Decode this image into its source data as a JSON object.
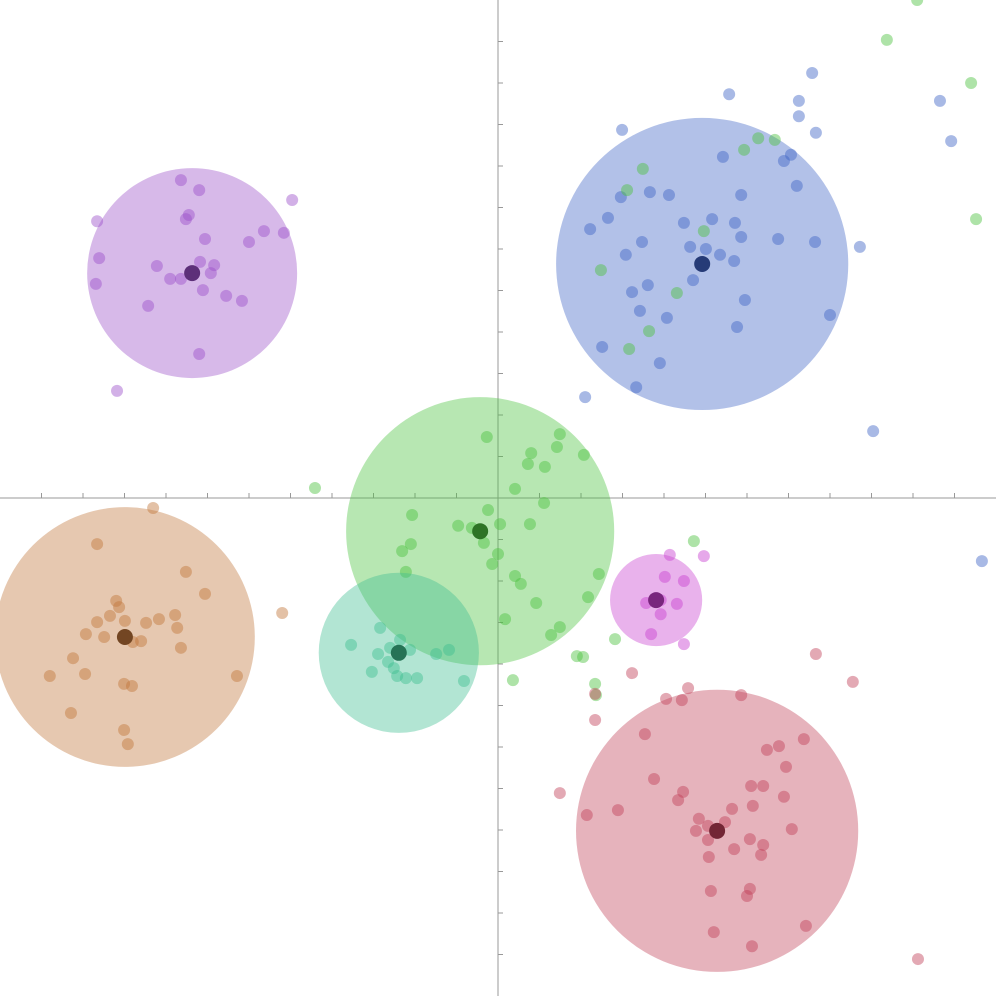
{
  "chart_data": {
    "type": "scatter",
    "xlim": [
      -12,
      12
    ],
    "ylim": [
      -12,
      12
    ],
    "xticks": [
      -11,
      -10,
      -9,
      -8,
      -7,
      -6,
      -5,
      -4,
      -3,
      -2,
      -1,
      1,
      2,
      3,
      4,
      5,
      6,
      7,
      8,
      9,
      10,
      11
    ],
    "yticks": [
      -11,
      -10,
      -9,
      -8,
      -7,
      -6,
      -5,
      -4,
      -3,
      -2,
      -1,
      1,
      2,
      3,
      4,
      5,
      6,
      7,
      8,
      9,
      10,
      11
    ],
    "series": [
      {
        "color": "#9b4fc9",
        "center": [
          -7.37,
          5.42
        ],
        "radius": 2.53,
        "x": [
          -7.64,
          -7.2,
          -7.45,
          -7.52,
          -7.06,
          -6.0,
          -5.64,
          -5.16,
          -4.96,
          -9.66,
          -9.61,
          -9.69,
          -8.22,
          -7.9,
          -7.64,
          -7.18,
          -6.84,
          -6.92,
          -7.11,
          -6.55,
          -6.17,
          -8.43,
          -7.2,
          -9.18
        ],
        "y": [
          7.66,
          7.42,
          6.82,
          6.72,
          6.24,
          6.17,
          6.43,
          6.39,
          7.18,
          6.67,
          5.78,
          5.16,
          5.59,
          5.28,
          5.28,
          5.69,
          5.61,
          5.42,
          5.01,
          4.87,
          4.75,
          4.63,
          3.47,
          2.58
        ]
      },
      {
        "color": "#3f63c6",
        "center": [
          4.92,
          5.64
        ],
        "radius": 3.52,
        "x": [
          7.57,
          5.57,
          7.25,
          7.25,
          7.66,
          10.65,
          10.92,
          2.99,
          5.42,
          7.06,
          6.89,
          7.2,
          5.86,
          3.66,
          4.12,
          2.96,
          2.65,
          2.22,
          4.48,
          5.16,
          5.71,
          5.86,
          3.47,
          3.08,
          6.75,
          7.64,
          8.72,
          4.63,
          5.01,
          5.35,
          5.69,
          4.7,
          3.23,
          3.61,
          5.95,
          8.0,
          3.42,
          4.07,
          5.76,
          2.51,
          3.9,
          3.33,
          2.1,
          9.04,
          11.66
        ],
        "y": [
          10.24,
          9.73,
          9.57,
          9.2,
          8.8,
          9.57,
          8.6,
          8.87,
          8.22,
          8.27,
          8.12,
          7.52,
          7.3,
          7.37,
          7.3,
          7.25,
          6.75,
          6.48,
          6.63,
          6.72,
          6.63,
          6.29,
          6.17,
          5.86,
          6.24,
          6.17,
          6.05,
          6.05,
          6.0,
          5.86,
          5.71,
          5.25,
          4.96,
          5.13,
          4.77,
          4.41,
          4.51,
          4.34,
          4.12,
          3.64,
          3.25,
          2.67,
          2.43,
          1.61,
          -1.52
        ]
      },
      {
        "color": "#4cc23f",
        "center": [
          -0.43,
          -0.8
        ],
        "radius": 3.23,
        "x": [
          10.1,
          9.37,
          11.4,
          11.52,
          6.27,
          6.67,
          5.93,
          3.49,
          3.11,
          4.96,
          2.48,
          4.31,
          3.64,
          3.16,
          -4.41,
          -0.27,
          1.49,
          0.8,
          1.42,
          1.13,
          2.07,
          0.72,
          0.41,
          1.11,
          -2.07,
          -0.24,
          -0.96,
          -0.63,
          0.05,
          0.77,
          -2.1,
          -2.31,
          -0.34,
          0,
          -0.14,
          -2.22,
          0.41,
          0.55,
          2.43,
          2.17,
          0.92,
          0.17,
          1.49,
          1.28,
          2.82,
          4.72,
          1.9,
          2.05,
          2.34,
          0.36,
          2.36
        ],
        "y": [
          12.0,
          11.04,
          10.0,
          6.72,
          8.67,
          8.63,
          8.39,
          7.93,
          7.42,
          6.43,
          5.49,
          4.94,
          4.02,
          3.59,
          0.24,
          1.47,
          1.54,
          1.08,
          1.23,
          0.75,
          1.04,
          0.82,
          0.22,
          -0.12,
          -0.41,
          -0.29,
          -0.67,
          -0.72,
          -0.63,
          -0.63,
          -1.11,
          -1.28,
          -1.08,
          -1.35,
          -1.59,
          -1.78,
          -1.88,
          -2.07,
          -1.83,
          -2.39,
          -2.53,
          -2.92,
          -3.11,
          -3.3,
          -3.4,
          -1.04,
          -3.81,
          -3.83,
          -4.48,
          -4.39,
          -4.75
        ]
      },
      {
        "color": "#3fbf90",
        "center": [
          -2.39,
          -3.73
        ],
        "radius": 1.93,
        "x": [
          -2.84,
          -2.36,
          -2.12,
          -3.54,
          -2.89,
          -2.65,
          -2.51,
          -3.04,
          -2.43,
          -2.22,
          -1.95,
          -1.49,
          -1.18,
          -0.82,
          -2.6
        ],
        "y": [
          -3.13,
          -3.42,
          -3.66,
          -3.54,
          -3.76,
          -3.95,
          -4.1,
          -4.19,
          -4.29,
          -4.34,
          -4.34,
          -3.76,
          -3.66,
          -4.41,
          -3.61
        ]
      },
      {
        "color": "#c0753a",
        "center": [
          -8.99,
          -3.35
        ],
        "radius": 3.13,
        "x": [
          -8.31,
          -9.66,
          -7.52,
          -7.06,
          -9.2,
          -9.13,
          -9.35,
          -8.99,
          -9.66,
          -8.17,
          -7.78,
          -8.48,
          -7.73,
          -9.93,
          -9.49,
          -8.8,
          -8.6,
          -7.64,
          -10.24,
          -9.95,
          -10.8,
          -6.29,
          -9.01,
          -8.82,
          -10.29,
          -9.01,
          -8.92,
          -5.2
        ],
        "y": [
          -0.24,
          -1.11,
          -1.78,
          -2.31,
          -2.48,
          -2.63,
          -2.84,
          -2.96,
          -2.99,
          -2.92,
          -2.82,
          -3.01,
          -3.13,
          -3.28,
          -3.35,
          -3.47,
          -3.45,
          -3.61,
          -3.86,
          -4.24,
          -4.29,
          -4.29,
          -4.48,
          -4.53,
          -5.18,
          -5.59,
          -5.93,
          -2.77
        ]
      },
      {
        "color": "#c83fd0",
        "center": [
          3.81,
          -2.46
        ],
        "radius": 1.11,
        "x": [
          4.14,
          4.96,
          4.02,
          4.48,
          3.57,
          4.31,
          3.92,
          3.69,
          4.48,
          3.92
        ],
        "y": [
          -1.37,
          -1.4,
          -1.9,
          -2.0,
          -2.53,
          -2.55,
          -2.8,
          -3.28,
          -3.52,
          -2.46
        ]
      },
      {
        "color": "#c04058",
        "center": [
          5.28,
          -8.02
        ],
        "radius": 3.4,
        "x": [
          7.66,
          8.55,
          3.23,
          2.34,
          2.34,
          4.58,
          4.43,
          4.05,
          5.86,
          3.54,
          7.37,
          6.77,
          6.48,
          6.94,
          3.76,
          6.1,
          6.39,
          1.49,
          4.46,
          4.34,
          6.89,
          6.14,
          5.64,
          2.14,
          2.89,
          4.84,
          5.47,
          5.06,
          4.77,
          7.08,
          5.06,
          5.69,
          6.07,
          6.39,
          5.08,
          6.34,
          5.13,
          6.07,
          6.0,
          7.42,
          5.2,
          6.12,
          10.12
        ],
        "y": [
          -3.76,
          -4.43,
          -4.22,
          -4.72,
          -5.35,
          -4.58,
          -4.87,
          -4.84,
          -4.75,
          -5.69,
          -5.81,
          -5.98,
          -6.07,
          -6.48,
          -6.77,
          -6.94,
          -6.94,
          -7.11,
          -7.08,
          -7.28,
          -7.2,
          -7.42,
          -7.49,
          -7.64,
          -7.52,
          -7.73,
          -7.81,
          -7.9,
          -8.02,
          -7.98,
          -8.24,
          -8.46,
          -8.22,
          -8.36,
          -8.65,
          -8.6,
          -9.47,
          -9.42,
          -9.59,
          -10.31,
          -10.46,
          -10.8,
          -11.11
        ]
      }
    ]
  }
}
